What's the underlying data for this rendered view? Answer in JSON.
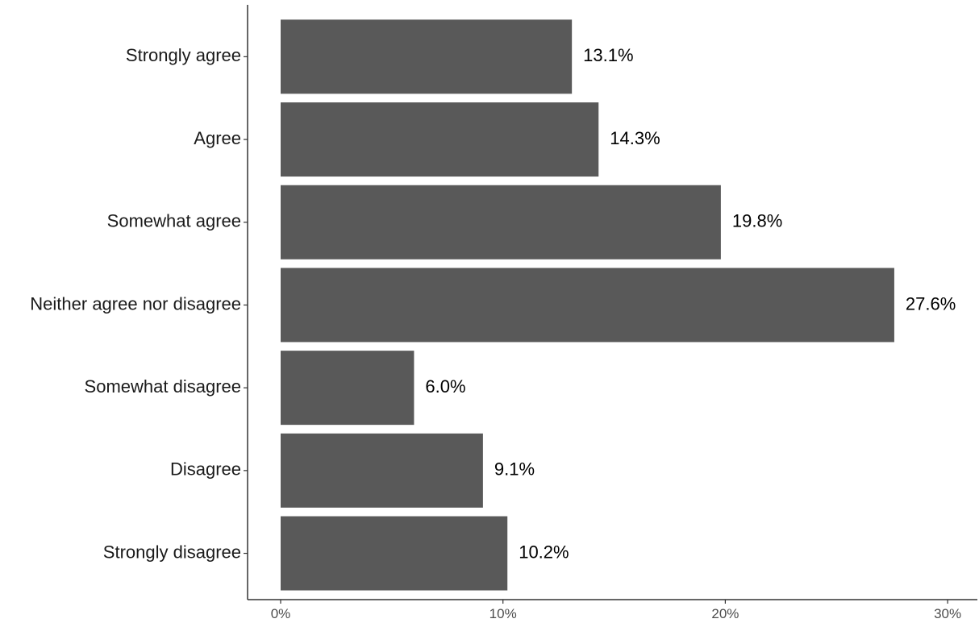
{
  "chart_data": {
    "type": "bar",
    "orientation": "horizontal",
    "categories": [
      "Strongly agree",
      "Agree",
      "Somewhat agree",
      "Neither agree nor disagree",
      "Somewhat disagree",
      "Disagree",
      "Strongly disagree"
    ],
    "values": [
      13.1,
      14.3,
      19.8,
      27.6,
      6.0,
      9.1,
      10.2
    ],
    "value_labels": [
      "13.1%",
      "14.3%",
      "19.8%",
      "27.6%",
      "6.0%",
      "9.1%",
      "10.2%"
    ],
    "x_ticks": [
      0,
      10,
      20,
      30
    ],
    "x_tick_labels": [
      "0%",
      "10%",
      "20%",
      "30%"
    ],
    "xlim": [
      0,
      30
    ],
    "title": "",
    "xlabel": "",
    "ylabel": "",
    "grid": false,
    "legend": "none",
    "bar_color": "#595959"
  }
}
